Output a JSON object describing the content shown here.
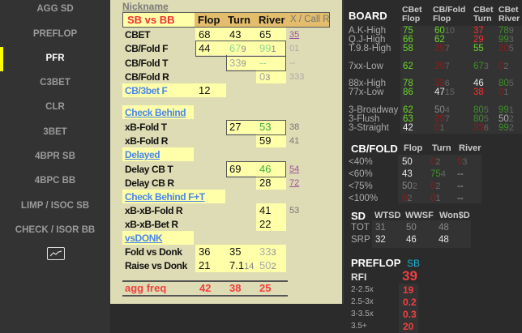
{
  "sidebar": {
    "items": [
      "AGG SD",
      "PREFLOP",
      "PFR",
      "C3BET",
      "CLR",
      "3BET",
      "4BPR SB",
      "4BPC BB",
      "LIMP / ISOC SB",
      "CHECK / ISOR BB"
    ],
    "active": "PFR",
    "chart_icon": "line-chart-icon"
  },
  "main": {
    "nickname": "Nickname",
    "header": {
      "matchup": "SB vs BB",
      "flop": "Flop",
      "turn": "Turn",
      "river": "River",
      "extra": "X / Call R"
    },
    "rows": [
      {
        "label": "CBET",
        "flop": {
          "v": "68"
        },
        "turn": {
          "v": "43"
        },
        "river": {
          "v": "65"
        },
        "extra": {
          "v": "35",
          "c": "pl"
        }
      },
      {
        "label": "CB/Fold F",
        "flop": {
          "v": "44"
        },
        "turn": {
          "v": "67",
          "n": "9",
          "c": "lg"
        },
        "river": {
          "v": "99",
          "n": "1",
          "c": "lg"
        },
        "extra": {
          "v": "01",
          "c": "gr"
        }
      },
      {
        "label": "CB/Fold T",
        "turn": {
          "v": "33",
          "n": "9",
          "c": "gr"
        },
        "river": {
          "v": "--",
          "c": "lg"
        },
        "extra": {
          "v": "--",
          "c": "gr"
        }
      },
      {
        "label": "CB/Fold R",
        "river": {
          "v": "0",
          "n": "3",
          "c": "gr"
        },
        "extra": {
          "v": "333",
          "c": "gr"
        }
      },
      {
        "label": "CB/3bet F",
        "style": "blue",
        "flop": {
          "v": "12"
        }
      },
      {
        "label": "Check Behind",
        "style": "section"
      },
      {
        "label": "xB-Fold T",
        "turn": {
          "v": "27"
        },
        "river": {
          "v": "53",
          "c": "g"
        },
        "extra": {
          "v": "38",
          "c": "x"
        }
      },
      {
        "label": "xB-Fold R",
        "river": {
          "v": "59"
        },
        "extra": {
          "v": "41",
          "c": "x"
        }
      },
      {
        "label": "Delayed",
        "style": "section"
      },
      {
        "label": "Delay CB T",
        "turn": {
          "v": "69"
        },
        "river": {
          "v": "46",
          "c": "g"
        },
        "extra": {
          "v": "54",
          "c": "pl"
        }
      },
      {
        "label": "Delay CB R",
        "river": {
          "v": "28"
        },
        "extra": {
          "v": "72",
          "c": "pl"
        }
      },
      {
        "label": "Check Behind F+T",
        "style": "section"
      },
      {
        "label": "xB-xB-Fold R",
        "river": {
          "v": "41"
        },
        "extra": {
          "v": "53",
          "c": "x"
        }
      },
      {
        "label": "xB-xB-Bet R",
        "river": {
          "v": "22"
        }
      },
      {
        "label": "vsDONK",
        "style": "section"
      },
      {
        "label": "Fold vs Donk",
        "flop": {
          "v": "36"
        },
        "turn": {
          "v": "35"
        },
        "river": {
          "v": "33",
          "n": "3",
          "c": "gr"
        }
      },
      {
        "label": "Raise vs Donk",
        "flop": {
          "v": "21"
        },
        "turn": {
          "v": "7.1",
          "n": "14"
        },
        "river": {
          "v": "50",
          "n": "2",
          "c": "gr"
        }
      }
    ],
    "agg": {
      "label": "agg freq",
      "flop": "42",
      "turn": "38",
      "river": "25"
    }
  },
  "board": {
    "title": "BOARD",
    "cols": [
      [
        "CBet",
        "Flop"
      ],
      [
        "CB/Fold",
        "Flop"
      ],
      [
        "CBet",
        "Turn"
      ],
      [
        "CBet",
        "River"
      ]
    ],
    "rows": [
      {
        "label": "A.K-High",
        "cells": [
          {
            "v": "75",
            "c": "g"
          },
          {
            "v": "60",
            "n": "10",
            "c": "g"
          },
          {
            "v": "37",
            "c": "r"
          },
          {
            "v": "78",
            "n": "9",
            "c": "dg"
          }
        ]
      },
      {
        "label": "Q.J-High",
        "cells": [
          {
            "v": "66",
            "c": "g"
          },
          {
            "v": "62",
            "c": "g"
          },
          {
            "v": "29",
            "c": "r"
          },
          {
            "v": "99",
            "n": "3",
            "c": "dg"
          }
        ]
      },
      {
        "label": "T.9.8-High",
        "cells": [
          {
            "v": "58",
            "c": "g"
          },
          {
            "v": "29",
            "n": "7",
            "c": "dr"
          },
          {
            "v": "55",
            "c": "g"
          },
          {
            "v": "20",
            "n": "5",
            "c": "dr"
          }
        ]
      },
      {
        "label": "7xx-Low",
        "cells": [
          {
            "v": "62",
            "c": "g"
          },
          {
            "v": "29",
            "n": "7",
            "c": "dr"
          },
          {
            "v": "67",
            "n": "3",
            "c": "dg"
          },
          {
            "v": "0",
            "n": "2",
            "c": "dr"
          }
        ]
      },
      {
        "label": "88x-High",
        "cells": [
          {
            "v": "78",
            "c": "g"
          },
          {
            "v": "33",
            "n": "6",
            "c": "dr"
          },
          {
            "v": "46",
            "c": "w"
          },
          {
            "v": "80",
            "n": "5",
            "c": "dg"
          }
        ]
      },
      {
        "label": "77x-Low",
        "cells": [
          {
            "v": "86",
            "c": "g"
          },
          {
            "v": "47",
            "n": "15",
            "c": "w"
          },
          {
            "v": "38",
            "c": "r"
          },
          {
            "v": "0",
            "n": "1",
            "c": "dr"
          }
        ]
      },
      {
        "label": "3-Broadway",
        "cells": [
          {
            "v": "62",
            "c": "g"
          },
          {
            "v": "50",
            "n": "4",
            "c": "gr"
          },
          {
            "v": "80",
            "n": "5",
            "c": "dg"
          },
          {
            "v": "99",
            "n": "1",
            "c": "dg"
          }
        ]
      },
      {
        "label": "3-Flush",
        "cells": [
          {
            "v": "63",
            "c": "g"
          },
          {
            "v": "29",
            "n": "7",
            "c": "dr"
          },
          {
            "v": "80",
            "n": "5",
            "c": "dg"
          },
          {
            "v": "50",
            "n": "2",
            "c": "d"
          }
        ]
      },
      {
        "label": "3-Straight",
        "cells": [
          {
            "v": "42",
            "c": "w"
          },
          {
            "v": "0",
            "n": "1",
            "c": "dr"
          },
          {
            "v": "33",
            "n": "6",
            "c": "dr"
          },
          {
            "v": "99",
            "n": "2",
            "c": "dg"
          }
        ]
      }
    ]
  },
  "cbfold": {
    "title": "CB/FOLD",
    "cols": [
      "Flop",
      "Turn",
      "River"
    ],
    "rows": [
      {
        "label": "<40%",
        "cells": [
          {
            "v": "50",
            "c": "w"
          },
          {
            "v": "0",
            "n": "2",
            "c": "dr"
          },
          {
            "v": "0",
            "n": "3",
            "c": "dr"
          }
        ]
      },
      {
        "label": "<60%",
        "cells": [
          {
            "v": "43",
            "c": "w"
          },
          {
            "v": "75",
            "n": "4",
            "c": "dg"
          },
          {
            "v": "--",
            "c": "d"
          }
        ]
      },
      {
        "label": "<75%",
        "cells": [
          {
            "v": "50",
            "n": "2",
            "c": "gr"
          },
          {
            "v": "0",
            "n": "2",
            "c": "dr"
          },
          {
            "v": "--",
            "c": "d"
          }
        ]
      },
      {
        "label": "<100%",
        "cells": [
          {
            "v": "0",
            "n": "2",
            "c": "dr"
          },
          {
            "v": "0",
            "n": "1",
            "c": "dr"
          },
          {
            "v": "--",
            "c": "d"
          }
        ]
      }
    ]
  },
  "sd": {
    "title": "SD",
    "cols": [
      "WTSD",
      "WWSF",
      "Won$D"
    ],
    "rows": [
      {
        "label": "TOT",
        "cells": [
          {
            "v": "31",
            "c": "gr"
          },
          {
            "v": "50",
            "c": "gr"
          },
          {
            "v": "48",
            "c": "gr"
          }
        ]
      },
      {
        "label": "SRP",
        "cells": [
          {
            "v": "32",
            "c": "w"
          },
          {
            "v": "46",
            "c": "w"
          },
          {
            "v": "48",
            "c": "w"
          }
        ]
      }
    ]
  },
  "preflop": {
    "title": "PREFLOP",
    "position": "SB",
    "rfi_label": "RFI",
    "rfi": "39",
    "sizes": [
      {
        "label": "2-2.5x",
        "v": "19"
      },
      {
        "label": "2.5-3x",
        "v": "0.2"
      },
      {
        "label": "3-3.5x",
        "v": "0.3"
      },
      {
        "label": "3.5+",
        "v": "20"
      }
    ]
  },
  "colors": {
    "sidebar_active": "#ffff00",
    "panel_bg": "#dedcb4",
    "cell_bg": "#ffffaa",
    "header_bg": "#e3bd6c",
    "good": "#6bd52a",
    "bad": "#ff2a2a"
  }
}
